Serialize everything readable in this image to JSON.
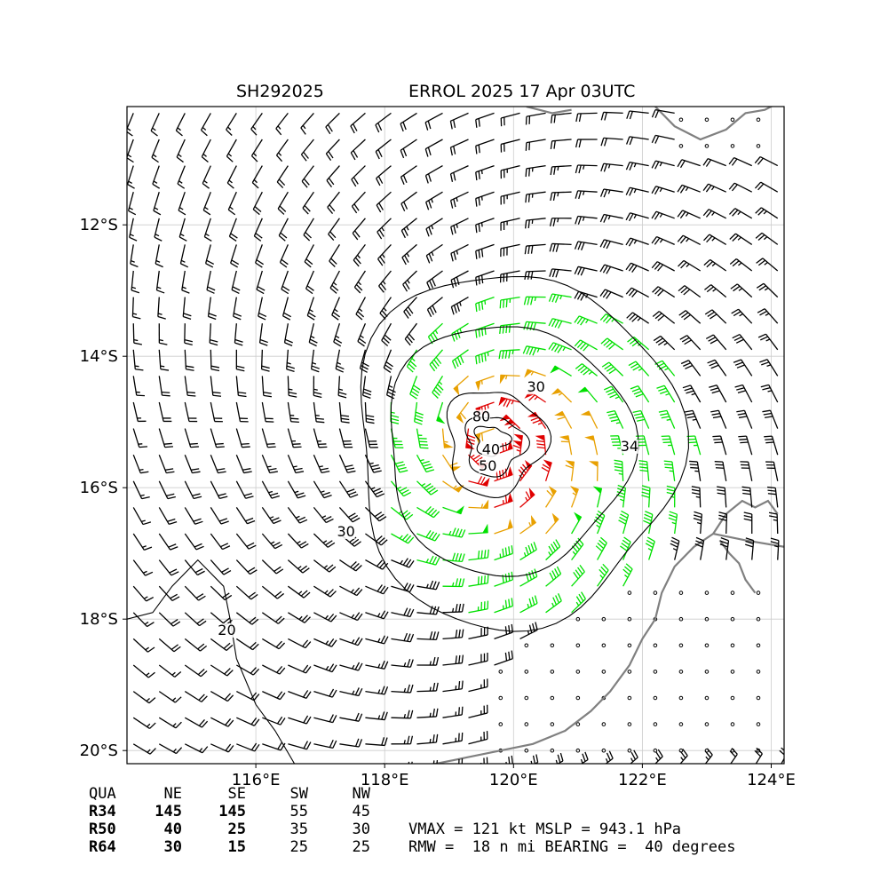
{
  "header": {
    "storm_id": "SH292025",
    "storm_title": "ERROL 2025 17 Apr 03UTC"
  },
  "chart_data": {
    "type": "wind-barb-map",
    "xlim": [
      114.0,
      124.2
    ],
    "ylim": [
      -20.2,
      -10.2
    ],
    "x_ticks": [
      {
        "value": 116,
        "label": "116°E"
      },
      {
        "value": 118,
        "label": "118°E"
      },
      {
        "value": 120,
        "label": "120°E"
      },
      {
        "value": 122,
        "label": "122°E"
      },
      {
        "value": 124,
        "label": "124°E"
      }
    ],
    "y_ticks": [
      {
        "value": -12,
        "label": "12°S"
      },
      {
        "value": -14,
        "label": "14°S"
      },
      {
        "value": -16,
        "label": "16°S"
      },
      {
        "value": -18,
        "label": "18°S"
      },
      {
        "value": -20,
        "label": "20°S"
      }
    ],
    "grid": true,
    "center": {
      "lon": 119.7,
      "lat": -15.3
    },
    "barb_colors": {
      "lt34": "#000000",
      "ge34": "#00e000",
      "ge50": "#e8a000",
      "ge64": "#e00000"
    },
    "coast_color": "#808080",
    "contour_labels": [
      {
        "text": "30",
        "lon": 120.35,
        "lat": -14.5
      },
      {
        "text": "34",
        "lon": 121.8,
        "lat": -15.4
      },
      {
        "text": "80",
        "lon": 119.5,
        "lat": -14.95
      },
      {
        "text": "40",
        "lon": 119.65,
        "lat": -15.45
      },
      {
        "text": "50",
        "lon": 119.6,
        "lat": -15.7
      },
      {
        "text": "30",
        "lon": 117.4,
        "lat": -16.7
      },
      {
        "text": "20",
        "lon": 115.55,
        "lat": -18.2
      }
    ]
  },
  "radii_table": {
    "columns": [
      "QUA",
      "NE",
      "SE",
      "SW",
      "NW"
    ],
    "rows": [
      {
        "label": "R34",
        "values": [
          "145",
          "145",
          "55",
          "45"
        ]
      },
      {
        "label": "R50",
        "values": [
          "40",
          "25",
          "35",
          "30"
        ]
      },
      {
        "label": "R64",
        "values": [
          "30",
          "15",
          "25",
          "25"
        ]
      }
    ]
  },
  "stats": {
    "line1": "VMAX = 121 kt MSLP = 943.1 hPa",
    "line2": "RMW =  18 n mi BEARING =  40 degrees"
  }
}
